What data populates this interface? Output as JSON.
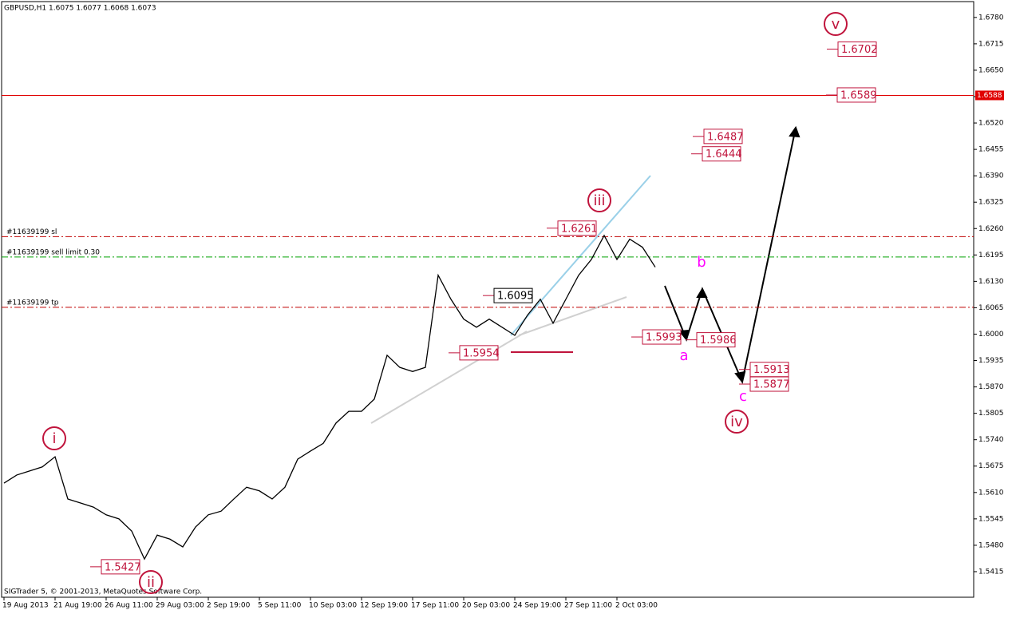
{
  "chart_data": {
    "type": "line",
    "title": "GBPUSD,H1  1.6075 1.6077 1.6068 1.6073",
    "footer": "SIGTrader 5, © 2001-2013, MetaQuotes Software Corp.",
    "categories": [
      "19 Aug 2013",
      null,
      null,
      null,
      "21 Aug 19:00",
      null,
      null,
      null,
      "26 Aug 11:00",
      null,
      null,
      null,
      "29 Aug 03:00",
      null,
      null,
      null,
      "2 Sep 19:00",
      null,
      null,
      null,
      "5 Sep 11:00",
      null,
      null,
      null,
      "10 Sep 03:00",
      null,
      null,
      null,
      "12 Sep 19:00",
      null,
      null,
      null,
      "17 Sep 11:00",
      null,
      null,
      null,
      "20 Sep 03:00",
      null,
      null,
      null,
      "24 Sep 19:00",
      null,
      null,
      null,
      "27 Sep 11:00",
      null,
      null,
      null,
      "2 Oct 03:00",
      null,
      null,
      null
    ],
    "values": [
      1.5633,
      1.5653,
      1.5663,
      1.5673,
      1.5698,
      1.5594,
      1.5584,
      1.5574,
      1.5555,
      1.5545,
      1.5515,
      1.5446,
      1.5505,
      1.5495,
      1.5476,
      1.5525,
      1.5555,
      1.5564,
      1.5594,
      1.5623,
      1.5614,
      1.5594,
      1.5623,
      1.5692,
      1.5712,
      1.5731,
      1.5781,
      1.581,
      1.581,
      1.584,
      1.5948,
      1.5918,
      1.5908,
      1.5918,
      1.6145,
      1.6086,
      1.6037,
      1.6017,
      1.6037,
      1.6017,
      1.5997,
      1.6047,
      1.6086,
      1.6027,
      1.6086,
      1.6145,
      1.6184,
      1.6243,
      1.6184,
      1.6234,
      1.6214,
      1.6165
    ],
    "color": "#000000",
    "ylim": [
      1.5352,
      1.6819
    ],
    "yticks": [
      {
        "value": 1.678,
        "label": "1.6780"
      },
      1.6715,
      {
        "value": 1.665,
        "label": "1.6650"
      },
      1.6585,
      {
        "value": 1.652,
        "label": "1.6520"
      },
      1.6455,
      {
        "value": 1.639,
        "label": "1.6390"
      },
      1.6325,
      {
        "value": 1.626,
        "label": "1.6260"
      },
      1.6195,
      {
        "value": 1.613,
        "label": "1.6130"
      },
      1.6065,
      {
        "value": 1.6,
        "label": "1.6000"
      },
      1.5935,
      {
        "value": 1.587,
        "label": "1.5870"
      },
      1.5805,
      {
        "value": 1.574,
        "label": "1.5740"
      },
      1.5675,
      {
        "value": 1.561,
        "label": "1.5610"
      },
      1.5545,
      {
        "value": 1.548,
        "label": "1.5480"
      },
      1.5415
    ],
    "levels": [
      {
        "label": "#11639199 sl",
        "value": 1.624,
        "color": "#c00000"
      },
      {
        "label": "#11639199 sell limit 0.30",
        "value": 1.619,
        "color": "#00a000"
      },
      {
        "label": "#11639199 tp",
        "value": 1.6066,
        "color": "#c00000"
      }
    ],
    "price_line": {
      "value": 1.6588,
      "color": "#e00000"
    },
    "annotations": [
      1.6702,
      1.6589,
      1.6487,
      1.6444,
      1.6261,
      1.6095,
      1.5993,
      1.5986,
      1.5913,
      1.5877,
      1.5954,
      1.5427
    ],
    "wave_labels": [
      "v",
      "iii",
      "i",
      "ii",
      "iv",
      "a",
      "b",
      "c"
    ]
  }
}
